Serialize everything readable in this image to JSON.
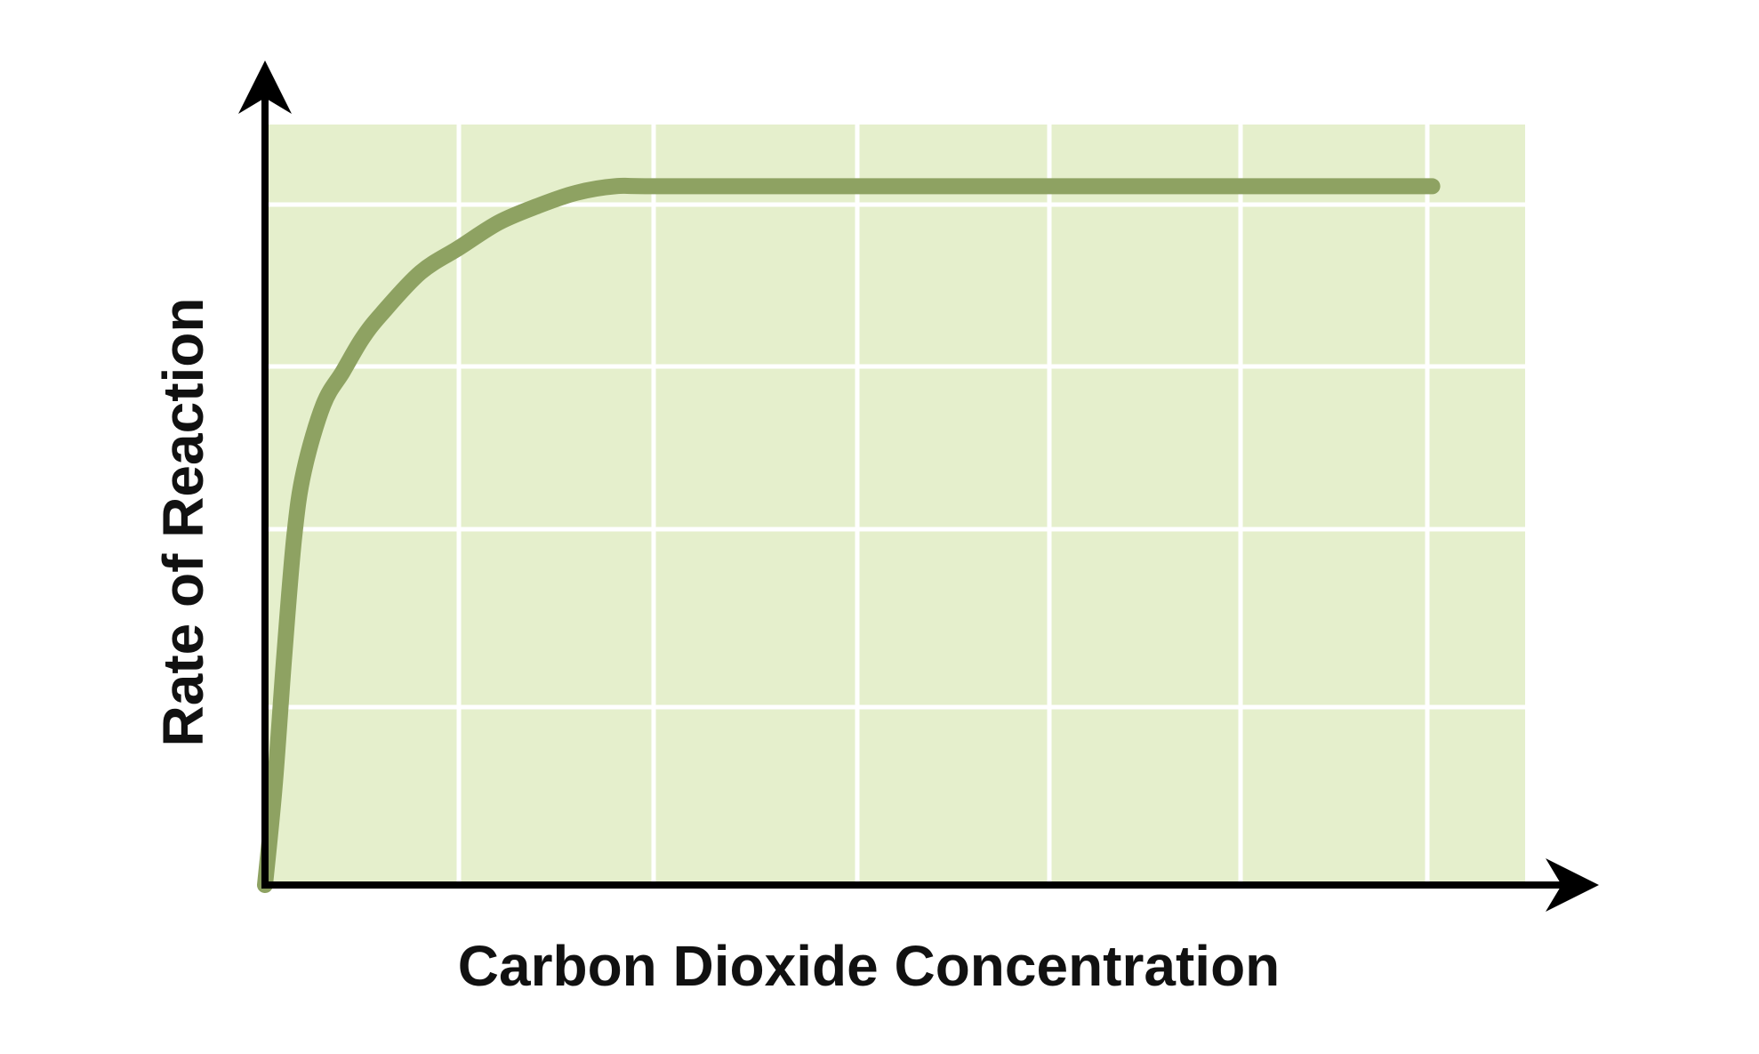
{
  "chart_data": {
    "type": "line",
    "title": "",
    "xlabel": "Carbon Dioxide Concentration",
    "ylabel": "Rate of Reaction",
    "x_ticks_labeled": false,
    "y_ticks_labeled": false,
    "grid": true,
    "legend": "none",
    "xlim": [
      0,
      6.5
    ],
    "ylim": [
      0,
      4.7
    ],
    "series": [
      {
        "x": [
          0,
          0.05,
          0.1,
          0.15,
          0.2,
          0.3,
          0.4,
          0.5,
          0.6,
          0.8,
          1.0,
          1.2,
          1.4,
          1.6,
          1.8,
          2.0,
          3.0,
          4.0,
          5.0,
          6.0
        ],
        "y": [
          0,
          0.6,
          1.4,
          2.1,
          2.5,
          2.9,
          3.1,
          3.3,
          3.45,
          3.7,
          3.85,
          4.0,
          4.1,
          4.18,
          4.22,
          4.22,
          4.22,
          4.22,
          4.22,
          4.22
        ]
      }
    ],
    "colors": {
      "plot_background": "#e5efcc",
      "gridline": "#ffffff",
      "curve": "#8ea262",
      "axis": "#000000"
    }
  }
}
